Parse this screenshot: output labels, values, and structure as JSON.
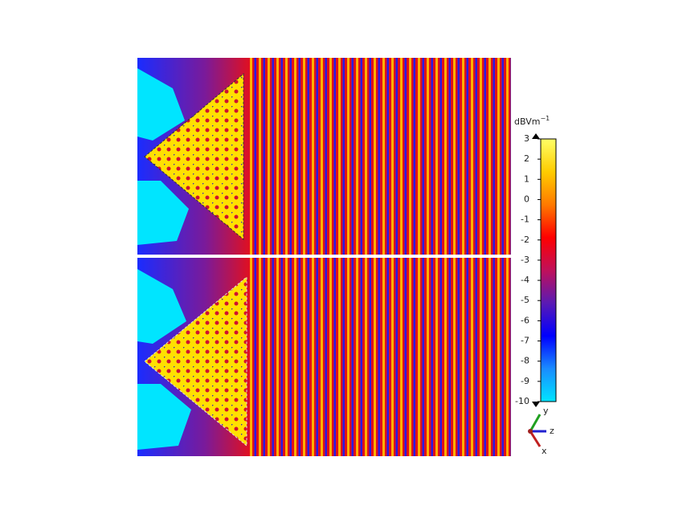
{
  "chart_data": {
    "type": "heatmap",
    "colorbar": {
      "label": "dBVm",
      "label_superscript": "−1",
      "lim": [
        -10,
        3
      ],
      "ticks": [
        3,
        2,
        1,
        0,
        -1,
        -2,
        -3,
        -4,
        -5,
        -6,
        -7,
        -8,
        -9,
        -10
      ],
      "colors": [
        "#00e5ff",
        "#1a8cff",
        "#0000ff",
        "#5a1ab4",
        "#c0105a",
        "#ff0000",
        "#ff7a00",
        "#ffcc00",
        "#ffff66"
      ]
    },
    "triad": {
      "y": "y",
      "z": "z",
      "x": "x"
    }
  }
}
